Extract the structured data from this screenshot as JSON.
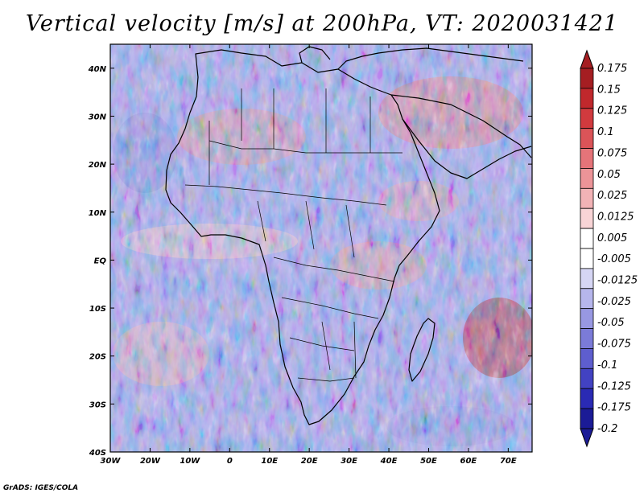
{
  "title": "Vertical velocity [m/s] at 200hPa, VT: 2020031421",
  "footer": "GrADS: IGES/COLA",
  "map": {
    "lon_range": [
      -30,
      76
    ],
    "lat_range": [
      -40,
      45
    ],
    "x_ticks": [
      "30W",
      "20W",
      "10W",
      "0",
      "10E",
      "20E",
      "30E",
      "40E",
      "50E",
      "60E",
      "70E"
    ],
    "x_tick_values": [
      -30,
      -20,
      -10,
      0,
      10,
      20,
      30,
      40,
      50,
      60,
      70
    ],
    "y_ticks": [
      "40N",
      "30N",
      "20N",
      "10N",
      "EQ",
      "10S",
      "20S",
      "30S",
      "40S"
    ],
    "y_tick_values": [
      40,
      30,
      20,
      10,
      0,
      -10,
      -20,
      -30,
      -40
    ]
  },
  "colorbar": {
    "labels": [
      "0.175",
      "0.15",
      "0.125",
      "0.1",
      "0.075",
      "0.05",
      "0.025",
      "0.0125",
      "0.005",
      "-0.005",
      "-0.0125",
      "-0.025",
      "-0.05",
      "-0.075",
      "-0.1",
      "-0.125",
      "-0.175",
      "-0.2"
    ],
    "colors": [
      "#a51e22",
      "#c0282c",
      "#d13a3e",
      "#db5458",
      "#e57479",
      "#ec9498",
      "#f2b3b6",
      "#f8d4d6",
      "#ffffff",
      "#ffffff",
      "#d6d6f4",
      "#b6b6ec",
      "#9898e2",
      "#7b7bd8",
      "#5e5ece",
      "#4242c2",
      "#2a2ab4",
      "#1b1b96"
    ]
  }
}
